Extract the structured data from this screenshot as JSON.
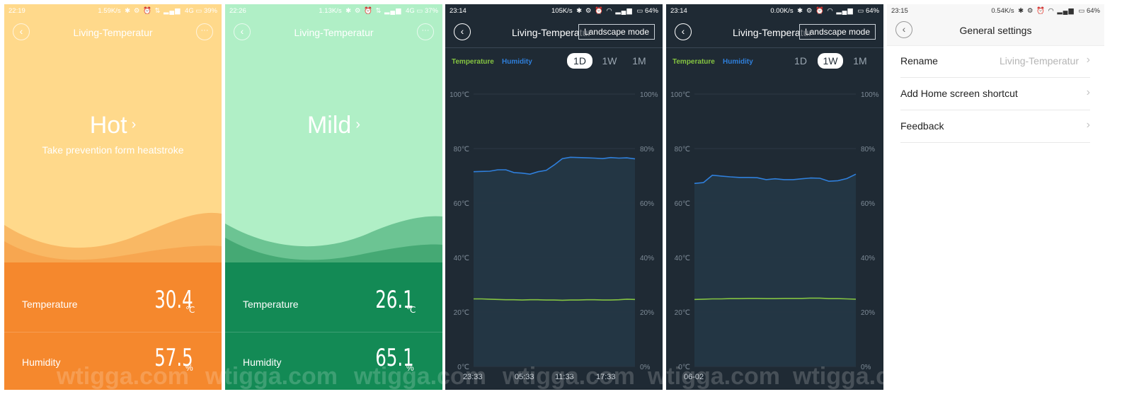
{
  "panel1": {
    "status_time": "22:19",
    "status_right": "1.59K/s",
    "status_net": "4G",
    "status_battery": "39%",
    "title": "Living-Temperatur",
    "condition": "Hot",
    "advice": "Take prevention form heatstroke",
    "temp_label": "Temperature",
    "temp_value": "30.4",
    "temp_unit": "℃",
    "hum_label": "Humidity",
    "hum_value": "57.5",
    "hum_unit": "%"
  },
  "panel2": {
    "status_time": "22:26",
    "status_right": "1.13K/s",
    "status_net": "4G",
    "status_battery": "37%",
    "title": "Living-Temperatur",
    "condition": "Mild",
    "temp_label": "Temperature",
    "temp_value": "26.1",
    "temp_unit": "℃",
    "hum_label": "Humidity",
    "hum_value": "65.1",
    "hum_unit": "%"
  },
  "panel3": {
    "status_time": "23:14",
    "status_right": "105K/s",
    "status_battery": "64%",
    "title": "Living-Temperatur",
    "landscape": "Landscape mode",
    "legend_temp": "Temperature",
    "legend_hum": "Humidity",
    "ranges": [
      "1D",
      "1W",
      "1M"
    ],
    "selected_range": "1D"
  },
  "panel4": {
    "status_time": "23:14",
    "status_right": "0.00K/s",
    "status_battery": "64%",
    "title": "Living-Temperatur",
    "landscape": "Landscape mode",
    "legend_temp": "Temperature",
    "legend_hum": "Humidity",
    "ranges": [
      "1D",
      "1W",
      "1M"
    ],
    "selected_range": "1W"
  },
  "panel5": {
    "status_time": "23:15",
    "status_right": "0.54K/s",
    "status_battery": "64%",
    "title": "General settings",
    "rows": [
      {
        "label": "Rename",
        "value": "Living-Temperatur"
      },
      {
        "label": "Add Home screen shortcut",
        "value": ""
      },
      {
        "label": "Feedback",
        "value": ""
      }
    ]
  },
  "watermark": "wtigga.com",
  "chart_data": [
    {
      "type": "line",
      "left_axis_ticks": [
        "100℃",
        "80℃",
        "60℃",
        "40℃",
        "20℃",
        "0℃"
      ],
      "right_axis_ticks": [
        "100%",
        "80%",
        "60%",
        "40%",
        "20%",
        "0%"
      ],
      "x_ticks": [
        "23:33",
        "05:33",
        "11:33",
        "17:33"
      ],
      "ylim": [
        0,
        100
      ],
      "series": [
        {
          "name": "Temperature",
          "color": "#84c341",
          "values": [
            24.8,
            24.8,
            24.7,
            24.6,
            24.5,
            24.5,
            24.4,
            24.5,
            24.5,
            24.4,
            24.4,
            24.3,
            24.4,
            24.4,
            24.5,
            24.5,
            24.4,
            24.4,
            24.5,
            24.7,
            24.6
          ]
        },
        {
          "name": "Humidity",
          "color": "#2f7fdb",
          "values": [
            71.5,
            71.6,
            71.7,
            72.2,
            72.2,
            71.2,
            71.0,
            70.6,
            71.5,
            72.0,
            74.0,
            76.3,
            76.8,
            76.7,
            76.6,
            76.5,
            76.3,
            76.7,
            76.5,
            76.6,
            76.2
          ]
        }
      ]
    },
    {
      "type": "line",
      "left_axis_ticks": [
        "100℃",
        "80℃",
        "60℃",
        "40℃",
        "20℃",
        "0℃"
      ],
      "right_axis_ticks": [
        "100%",
        "80%",
        "60%",
        "40%",
        "20%",
        "0%"
      ],
      "x_ticks": [
        "06-02"
      ],
      "ylim": [
        0,
        100
      ],
      "series": [
        {
          "name": "Temperature",
          "color": "#84c341",
          "values": [
            24.6,
            24.7,
            24.8,
            24.8,
            24.9,
            24.9,
            25.0,
            25.0,
            24.9,
            24.9,
            25.0,
            25.0,
            25.0,
            25.1,
            25.1,
            24.9,
            24.9,
            24.8,
            24.7
          ]
        },
        {
          "name": "Humidity",
          "color": "#2f7fdb",
          "values": [
            67.2,
            67.5,
            70.2,
            69.9,
            69.6,
            69.4,
            69.4,
            69.3,
            68.6,
            68.9,
            68.6,
            68.6,
            68.9,
            69.2,
            69.1,
            68.0,
            68.2,
            69.0,
            70.6
          ]
        }
      ]
    }
  ]
}
